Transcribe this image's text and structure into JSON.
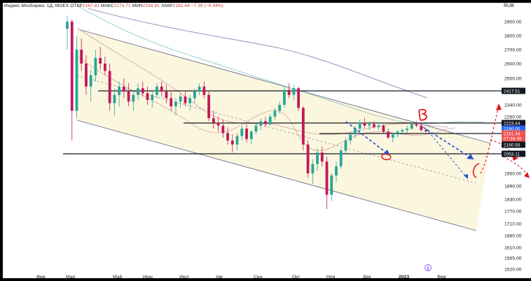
{
  "header": {
    "symbol_label": "Индекс МосБиржи, 1Д, MOEX",
    "open_label": "ОТКР",
    "open_value": "2167.81",
    "high_label": "МАКС",
    "high_value": "2173.71",
    "low_label": "МИН",
    "low_value": "2158.81",
    "close_label": "ЗАКР",
    "close_value": "2161.44",
    "change": "−7.39 (−0.34%)",
    "currency": "RUB"
  },
  "chart_data": {
    "type": "candlestick",
    "title": "",
    "ylim": [
      1500,
      3000
    ],
    "y_ticks": [
      2900,
      2800,
      2700,
      2600,
      2500,
      2340,
      2260,
      2180,
      2100,
      2030,
      1950,
      1890,
      1830,
      1770,
      1710,
      1660,
      1610,
      1565,
      1520
    ],
    "y_tick_labels": [
      "2900.00",
      "2800.00",
      "2700.00",
      "2600.00",
      "2500.00",
      "2340.00",
      "2260.00",
      "2180.00",
      "2100.00",
      "2030.00",
      "1950.00",
      "1890.00",
      "1830.00",
      "1770.00",
      "1710.00",
      "1660.00",
      "1610.00",
      "1565.00",
      "1520.00"
    ],
    "x_labels": [
      "Фев",
      "Мар",
      "Май",
      "Июн",
      "Июл",
      "Авг",
      "Сен",
      "Окт",
      "Ноя",
      "Дек",
      "2023",
      "Фев"
    ],
    "price_tags": [
      {
        "value": "2417.51",
        "color": "#131722",
        "text_color": "#ffffff"
      },
      {
        "value": "2223.44",
        "color": "#131722",
        "text_color": "#ffffff"
      },
      {
        "value": "2180.00",
        "color": "#2962ff",
        "text_color": "#ffffff"
      },
      {
        "value": "2161.44",
        "color": "#ef5350",
        "text_color": "#ffffff"
      },
      {
        "value": "07:39:39",
        "color": "#ef5350",
        "text_color": "#ffffff"
      },
      {
        "value": "2160.93",
        "color": "#131722",
        "text_color": "#ffffff"
      },
      {
        "value": "2053.11",
        "color": "#131722",
        "text_color": "#ffffff"
      }
    ],
    "horizontal_levels": [
      2417.51,
      2223.44,
      2180.0,
      2053.11
    ],
    "candles": [
      [
        2850,
        2950,
        2700,
        2900
      ],
      [
        2900,
        2920,
        2100,
        2300
      ],
      [
        2300,
        2800,
        2250,
        2700
      ],
      [
        2700,
        2780,
        2550,
        2600
      ],
      [
        2600,
        2660,
        2400,
        2450
      ],
      [
        2450,
        2560,
        2360,
        2520
      ],
      [
        2520,
        2700,
        2480,
        2640
      ],
      [
        2640,
        2720,
        2560,
        2600
      ],
      [
        2600,
        2650,
        2520,
        2550
      ],
      [
        2550,
        2600,
        2300,
        2350
      ],
      [
        2350,
        2440,
        2270,
        2400
      ],
      [
        2400,
        2480,
        2330,
        2450
      ],
      [
        2450,
        2500,
        2380,
        2420
      ],
      [
        2420,
        2470,
        2330,
        2360
      ],
      [
        2360,
        2430,
        2300,
        2400
      ],
      [
        2400,
        2470,
        2370,
        2440
      ],
      [
        2440,
        2480,
        2390,
        2410
      ],
      [
        2410,
        2450,
        2340,
        2370
      ],
      [
        2370,
        2420,
        2320,
        2400
      ],
      [
        2400,
        2470,
        2380,
        2450
      ],
      [
        2450,
        2480,
        2390,
        2420
      ],
      [
        2420,
        2460,
        2350,
        2380
      ],
      [
        2380,
        2420,
        2300,
        2330
      ],
      [
        2330,
        2380,
        2270,
        2360
      ],
      [
        2360,
        2410,
        2320,
        2390
      ],
      [
        2390,
        2420,
        2330,
        2350
      ],
      [
        2350,
        2400,
        2300,
        2380
      ],
      [
        2380,
        2440,
        2350,
        2420
      ],
      [
        2420,
        2470,
        2400,
        2450
      ],
      [
        2450,
        2480,
        2380,
        2400
      ],
      [
        2400,
        2420,
        2230,
        2250
      ],
      [
        2250,
        2300,
        2180,
        2220
      ],
      [
        2220,
        2260,
        2160,
        2200
      ],
      [
        2200,
        2240,
        2120,
        2150
      ],
      [
        2150,
        2190,
        2080,
        2100
      ],
      [
        2100,
        2140,
        2040,
        2080
      ],
      [
        2080,
        2150,
        2050,
        2130
      ],
      [
        2130,
        2200,
        2100,
        2180
      ],
      [
        2180,
        2210,
        2090,
        2110
      ],
      [
        2110,
        2170,
        2080,
        2160
      ],
      [
        2160,
        2220,
        2140,
        2200
      ],
      [
        2200,
        2250,
        2170,
        2230
      ],
      [
        2230,
        2260,
        2190,
        2210
      ],
      [
        2210,
        2280,
        2200,
        2260
      ],
      [
        2260,
        2320,
        2240,
        2300
      ],
      [
        2300,
        2360,
        2280,
        2340
      ],
      [
        2340,
        2450,
        2320,
        2430
      ],
      [
        2430,
        2470,
        2380,
        2400
      ],
      [
        2400,
        2460,
        2370,
        2440
      ],
      [
        2440,
        2450,
        2300,
        2320
      ],
      [
        2320,
        2330,
        2050,
        2080
      ],
      [
        2080,
        2100,
        1930,
        1950
      ],
      [
        1950,
        2010,
        1900,
        1990
      ],
      [
        1990,
        2060,
        1960,
        2040
      ],
      [
        2040,
        2070,
        1980,
        2000
      ],
      [
        2000,
        2020,
        1780,
        1850
      ],
      [
        1850,
        1950,
        1820,
        1940
      ],
      [
        1940,
        2000,
        1910,
        1980
      ],
      [
        1980,
        2060,
        1970,
        2050
      ],
      [
        2050,
        2120,
        2030,
        2100
      ],
      [
        2100,
        2160,
        2080,
        2140
      ],
      [
        2140,
        2200,
        2120,
        2180
      ],
      [
        2180,
        2240,
        2160,
        2220
      ],
      [
        2220,
        2250,
        2180,
        2200
      ],
      [
        2200,
        2230,
        2170,
        2210
      ],
      [
        2210,
        2230,
        2180,
        2190
      ],
      [
        2190,
        2220,
        2170,
        2200
      ],
      [
        2200,
        2210,
        2150,
        2160
      ],
      [
        2160,
        2180,
        2110,
        2120
      ],
      [
        2120,
        2150,
        2090,
        2140
      ],
      [
        2140,
        2170,
        2120,
        2160
      ],
      [
        2160,
        2180,
        2140,
        2170
      ],
      [
        2170,
        2200,
        2150,
        2180
      ],
      [
        2180,
        2220,
        2170,
        2210
      ],
      [
        2210,
        2230,
        2190,
        2200
      ],
      [
        2200,
        2210,
        2160,
        2170
      ],
      [
        2170,
        2180,
        2155,
        2161
      ]
    ]
  }
}
